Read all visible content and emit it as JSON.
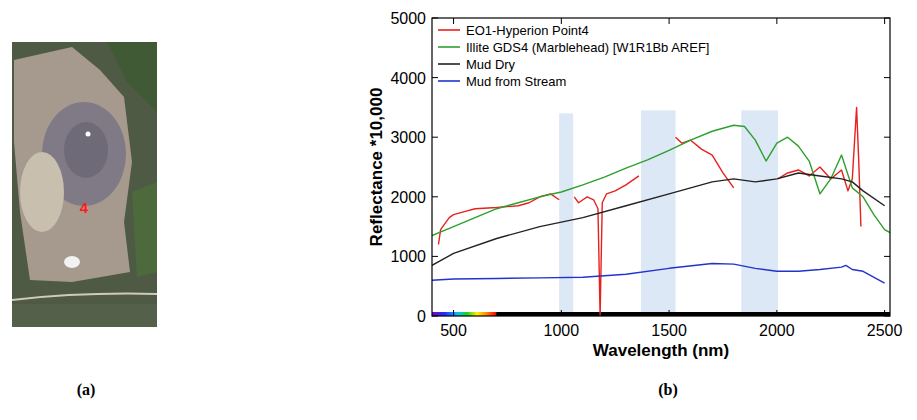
{
  "panels": {
    "a": {
      "label": "(a)",
      "point_label": "4"
    },
    "b": {
      "label": "(b)"
    }
  },
  "chart_data": {
    "type": "line",
    "x_label": "Wavelength (nm)",
    "y_label": "Reflectance *10,000",
    "xlim": [
      400,
      2525
    ],
    "xticks": [
      500,
      1000,
      1500,
      2000,
      2500
    ],
    "ylim": [
      0,
      5000
    ],
    "yticks": [
      0,
      1000,
      2000,
      3000,
      4000,
      5000
    ],
    "grid": false,
    "legend": "top-left",
    "bands": [
      {
        "x": [
          990,
          1055
        ],
        "top": 3400
      },
      {
        "x": [
          1370,
          1530
        ],
        "top": 3450
      },
      {
        "x": [
          1835,
          2005
        ],
        "top": 3450
      }
    ],
    "series": [
      {
        "name": "EO1-Hyperion Point4",
        "color": "#e8201e",
        "x": [
          430,
          440,
          460,
          480,
          500,
          550,
          600,
          700,
          800,
          850,
          900,
          950,
          990,
          1020,
          1060,
          1080,
          1100,
          1120,
          1150,
          1170,
          1180,
          1190,
          1210,
          1250,
          1300,
          1360,
          1450,
          1530,
          1560,
          1600,
          1650,
          1700,
          1750,
          1800,
          1900,
          2005,
          2050,
          2100,
          2150,
          2200,
          2250,
          2300,
          2330,
          2350,
          2370,
          2380,
          2390
        ],
        "values": [
          1200,
          1450,
          1550,
          1650,
          1700,
          1750,
          1800,
          1820,
          1850,
          1900,
          2000,
          2050,
          1950,
          null,
          2000,
          1900,
          1950,
          2000,
          1950,
          1800,
          0,
          1900,
          2050,
          2100,
          2200,
          2350,
          null,
          3000,
          2900,
          2950,
          2800,
          2700,
          2400,
          2150,
          null,
          2300,
          2400,
          2450,
          2350,
          2500,
          2300,
          2450,
          2100,
          2300,
          3500,
          2600,
          1500
        ]
      },
      {
        "name": "Illite GDS4 (Marblehead) [W1R1Bb AREF]",
        "color": "#2ca02c",
        "x": [
          400,
          500,
          600,
          700,
          800,
          900,
          1000,
          1100,
          1200,
          1300,
          1400,
          1500,
          1600,
          1700,
          1800,
          1850,
          1900,
          1950,
          2000,
          2050,
          2100,
          2150,
          2200,
          2250,
          2300,
          2350,
          2400,
          2450,
          2500,
          2525
        ],
        "values": [
          1350,
          1500,
          1650,
          1800,
          1900,
          2000,
          2080,
          2200,
          2330,
          2480,
          2620,
          2780,
          2950,
          3100,
          3200,
          3180,
          2950,
          2600,
          2900,
          3000,
          2850,
          2600,
          2050,
          2300,
          2700,
          2150,
          2000,
          1700,
          1450,
          1400
        ]
      },
      {
        "name": "Mud Dry",
        "color": "#222222",
        "x": [
          400,
          500,
          700,
          900,
          1100,
          1300,
          1500,
          1700,
          1800,
          1900,
          2000,
          2100,
          2200,
          2300,
          2350,
          2400,
          2500
        ],
        "values": [
          850,
          1050,
          1300,
          1500,
          1650,
          1850,
          2050,
          2250,
          2300,
          2250,
          2300,
          2400,
          2350,
          2300,
          2250,
          2100,
          1850
        ]
      },
      {
        "name": "Mud from Stream",
        "color": "#2233cc",
        "x": [
          400,
          500,
          700,
          900,
          1100,
          1300,
          1500,
          1700,
          1800,
          1900,
          2000,
          2100,
          2200,
          2300,
          2320,
          2350,
          2400,
          2500
        ],
        "values": [
          600,
          620,
          630,
          640,
          650,
          700,
          800,
          880,
          870,
          800,
          750,
          750,
          780,
          820,
          850,
          780,
          750,
          550
        ]
      }
    ]
  }
}
